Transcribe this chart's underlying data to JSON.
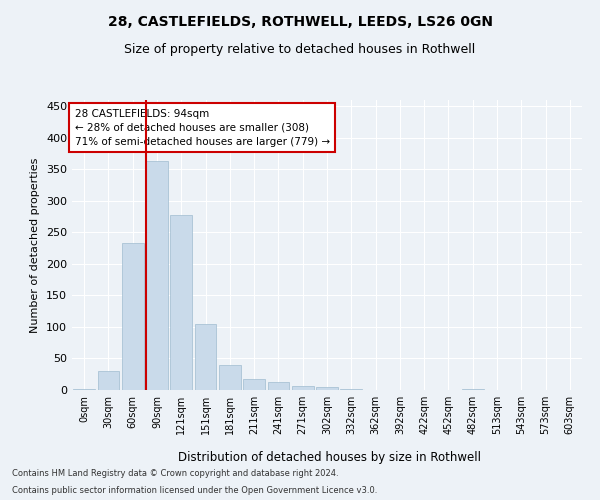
{
  "title1": "28, CASTLEFIELDS, ROTHWELL, LEEDS, LS26 0GN",
  "title2": "Size of property relative to detached houses in Rothwell",
  "xlabel": "Distribution of detached houses by size in Rothwell",
  "ylabel": "Number of detached properties",
  "bar_color": "#c9daea",
  "bar_edge_color": "#a0bcd0",
  "categories": [
    "0sqm",
    "30sqm",
    "60sqm",
    "90sqm",
    "121sqm",
    "151sqm",
    "181sqm",
    "211sqm",
    "241sqm",
    "271sqm",
    "302sqm",
    "332sqm",
    "362sqm",
    "392sqm",
    "422sqm",
    "452sqm",
    "482sqm",
    "513sqm",
    "543sqm",
    "573sqm",
    "603sqm"
  ],
  "values": [
    2,
    30,
    233,
    363,
    278,
    105,
    40,
    18,
    12,
    6,
    5,
    1,
    0,
    0,
    0,
    0,
    1,
    0,
    0,
    0,
    0
  ],
  "ylim": [
    0,
    460
  ],
  "yticks": [
    0,
    50,
    100,
    150,
    200,
    250,
    300,
    350,
    400,
    450
  ],
  "property_bin_index": 3,
  "annotation_line1": "28 CASTLEFIELDS: 94sqm",
  "annotation_line2": "← 28% of detached houses are smaller (308)",
  "annotation_line3": "71% of semi-detached houses are larger (779) →",
  "vline_color": "#cc0000",
  "annotation_box_facecolor": "#ffffff",
  "annotation_box_edgecolor": "#cc0000",
  "footer1": "Contains HM Land Registry data © Crown copyright and database right 2024.",
  "footer2": "Contains public sector information licensed under the Open Government Licence v3.0.",
  "background_color": "#edf2f7",
  "grid_color": "#ffffff"
}
